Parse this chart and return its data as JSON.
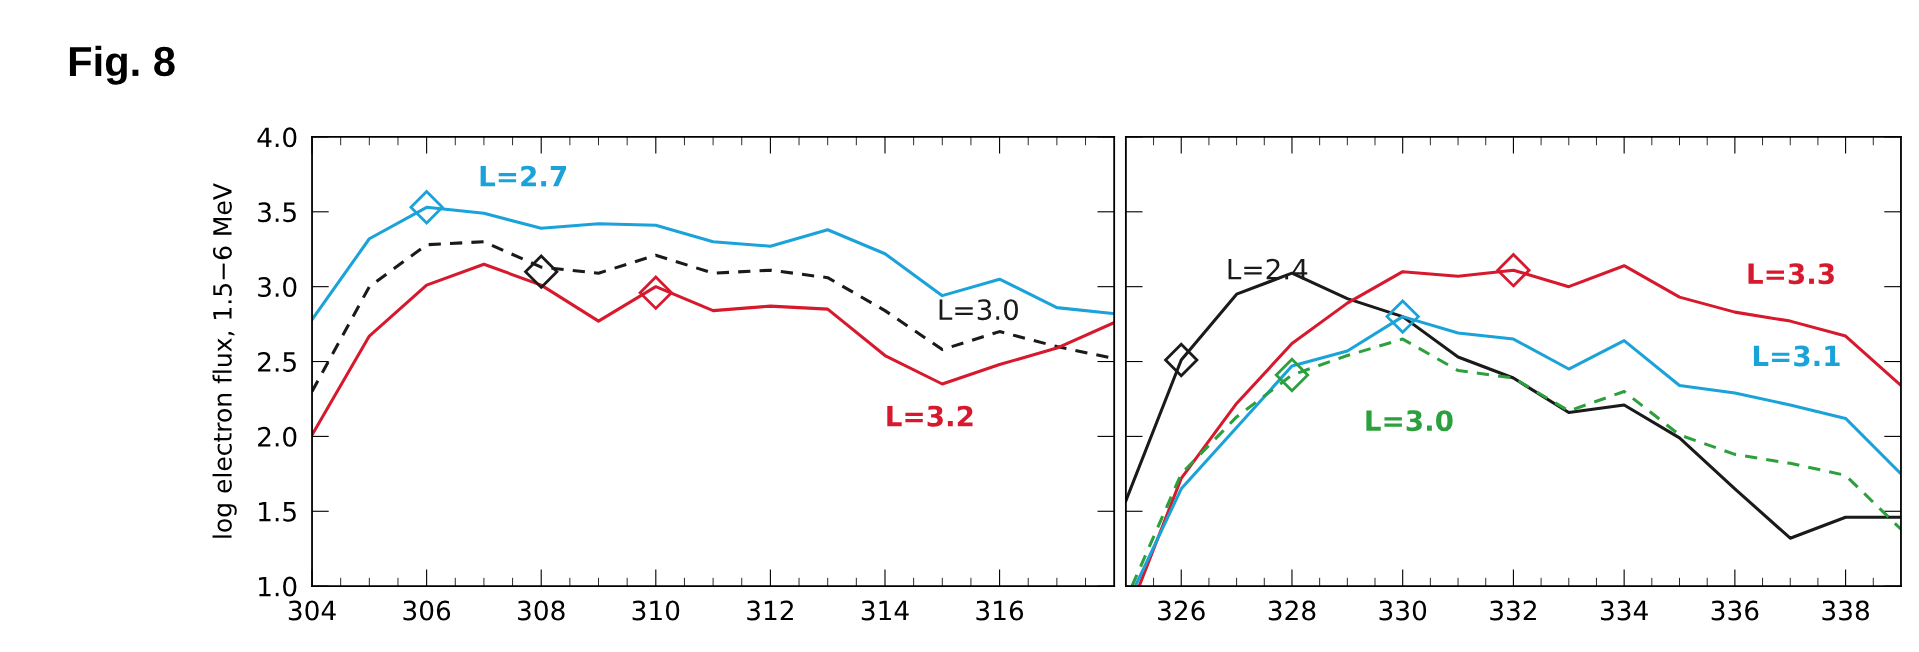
{
  "chart_data": [
    {
      "type": "line",
      "title": "Fig. 8",
      "ylabel": "log electron flux, 1.5−6 MeV",
      "xlim": [
        304,
        318
      ],
      "xticks": [
        304,
        {
          "value": 304.5,
          "label": null
        },
        {
          "value": 305,
          "label": null
        },
        {
          "value": 305.5,
          "label": null
        },
        306,
        {
          "value": 306.5,
          "label": null
        },
        {
          "value": 307,
          "label": null
        },
        {
          "value": 307.5,
          "label": null
        },
        308,
        {
          "value": 308.5,
          "label": null
        },
        {
          "value": 309,
          "label": null
        },
        {
          "value": 309.5,
          "label": null
        },
        310,
        {
          "value": 310.5,
          "label": null
        },
        {
          "value": 311,
          "label": null
        },
        {
          "value": 311.5,
          "label": null
        },
        312,
        {
          "value": 312.5,
          "label": null
        },
        {
          "value": 313,
          "label": null
        },
        {
          "value": 313.5,
          "label": null
        },
        314,
        {
          "value": 314.5,
          "label": null
        },
        {
          "value": 315,
          "label": null
        },
        {
          "value": 315.5,
          "label": null
        },
        316,
        {
          "value": 316.5,
          "label": null
        },
        {
          "value": 317,
          "label": null
        },
        {
          "value": 317.5,
          "label": null
        }
      ],
      "ylim": [
        1.0,
        4.0
      ],
      "yticks": [
        {
          "value": 1.0,
          "label": "1.0"
        },
        {
          "value": 1.5,
          "label": "1.5"
        },
        {
          "value": 2.0,
          "label": "2.0"
        },
        {
          "value": 2.5,
          "label": "2.5"
        },
        {
          "value": 3.0,
          "label": "3.0"
        },
        {
          "value": 3.5,
          "label": "3.5"
        },
        {
          "value": 4.0,
          "label": "4.0"
        }
      ],
      "grid": false,
      "legend": false,
      "x": [
        304,
        305,
        306,
        307,
        308,
        309,
        310,
        311,
        312,
        313,
        314,
        315,
        316,
        317,
        318
      ],
      "series": [
        {
          "name": "L=2.7",
          "color": "#1ba3d9",
          "line_style": "solid",
          "values": [
            2.78,
            3.32,
            3.53,
            3.49,
            3.39,
            3.42,
            3.41,
            3.3,
            3.27,
            3.38,
            3.22,
            2.94,
            3.05,
            2.86,
            2.82
          ]
        },
        {
          "name": "L=3.0",
          "color": "#1a1a1a",
          "line_style": "dashed",
          "values": [
            2.3,
            3.0,
            3.28,
            3.3,
            3.13,
            3.09,
            3.21,
            3.09,
            3.11,
            3.06,
            2.84,
            2.58,
            2.7,
            2.6,
            2.52
          ]
        },
        {
          "name": "L=3.2",
          "color": "#d7192e",
          "line_style": "solid",
          "values": [
            2.01,
            2.67,
            3.01,
            3.15,
            3.01,
            2.77,
            3.0,
            2.84,
            2.87,
            2.85,
            2.54,
            2.35,
            2.48,
            2.59,
            2.76
          ]
        },
        {
          "type": "scatter",
          "marker": "diamond",
          "color": "#1ba3d9",
          "x": [
            306
          ],
          "values": [
            3.53
          ]
        },
        {
          "type": "scatter",
          "marker": "diamond",
          "color": "#1a1a1a",
          "x": [
            308
          ],
          "values": [
            3.1
          ]
        },
        {
          "type": "scatter",
          "marker": "diamond",
          "color": "#d7192e",
          "x": [
            310
          ],
          "values": [
            2.96
          ]
        }
      ]
    },
    {
      "type": "line",
      "xlim": [
        325,
        339
      ],
      "xticks": [
        {
          "value": 325.5,
          "label": null
        },
        326,
        {
          "value": 326.5,
          "label": null
        },
        {
          "value": 327,
          "label": null
        },
        {
          "value": 327.5,
          "label": null
        },
        328,
        {
          "value": 328.5,
          "label": null
        },
        {
          "value": 329,
          "label": null
        },
        {
          "value": 329.5,
          "label": null
        },
        330,
        {
          "value": 330.5,
          "label": null
        },
        {
          "value": 331,
          "label": null
        },
        {
          "value": 331.5,
          "label": null
        },
        332,
        {
          "value": 332.5,
          "label": null
        },
        {
          "value": 333,
          "label": null
        },
        {
          "value": 333.5,
          "label": null
        },
        334,
        {
          "value": 334.5,
          "label": null
        },
        {
          "value": 335,
          "label": null
        },
        {
          "value": 335.5,
          "label": null
        },
        336,
        {
          "value": 336.5,
          "label": null
        },
        {
          "value": 337,
          "label": null
        },
        {
          "value": 337.5,
          "label": null
        },
        338,
        {
          "value": 338.5,
          "label": null
        }
      ],
      "ylim": [
        1.0,
        4.0
      ],
      "yticks": [
        {
          "value": 1.0,
          "label": null
        },
        {
          "value": 1.5,
          "label": null
        },
        {
          "value": 2.0,
          "label": null
        },
        {
          "value": 2.5,
          "label": null
        },
        {
          "value": 3.0,
          "label": null
        },
        {
          "value": 3.5,
          "label": null
        },
        {
          "value": 4.0,
          "label": null
        }
      ],
      "tick_labels": "x",
      "grid": false,
      "legend": false,
      "series": [
        {
          "name": "L=2.4",
          "color": "#1a1a1a",
          "line_style": "solid",
          "x": [
            325,
            326,
            327,
            328,
            329,
            330,
            331,
            332,
            333,
            334,
            335,
            336,
            337,
            338,
            339
          ],
          "values": [
            1.57,
            2.51,
            2.95,
            3.09,
            2.92,
            2.8,
            2.53,
            2.39,
            2.16,
            2.21,
            1.99,
            1.65,
            1.32,
            1.46,
            1.46
          ]
        },
        {
          "name": "L=3.3",
          "color": "#d7192e",
          "line_style": "solid",
          "x": [
            325.24,
            326,
            327,
            328,
            329,
            330,
            331,
            332,
            333,
            334,
            335,
            336,
            337,
            338,
            339
          ],
          "values": [
            1.0,
            1.72,
            2.22,
            2.62,
            2.89,
            3.1,
            3.07,
            3.11,
            3.0,
            3.14,
            2.93,
            2.83,
            2.77,
            2.67,
            2.34
          ]
        },
        {
          "name": "L=3.1",
          "color": "#1ba3d9",
          "line_style": "solid",
          "x": [
            325.17,
            326,
            327,
            328,
            329,
            330,
            331,
            332,
            333,
            334,
            335,
            336,
            337,
            338,
            339
          ],
          "values": [
            1.0,
            1.65,
            2.06,
            2.47,
            2.57,
            2.8,
            2.69,
            2.65,
            2.45,
            2.64,
            2.34,
            2.29,
            2.21,
            2.12,
            1.75
          ]
        },
        {
          "name": "L=3.0",
          "color": "#2ca03c",
          "line_style": "dashed",
          "x": [
            325.11,
            326,
            327,
            328,
            329,
            330,
            331,
            332,
            333,
            334,
            335,
            336,
            337,
            338,
            339
          ],
          "values": [
            1.0,
            1.75,
            2.13,
            2.41,
            2.54,
            2.65,
            2.44,
            2.39,
            2.17,
            2.3,
            2.01,
            1.88,
            1.82,
            1.74,
            1.38
          ]
        },
        {
          "type": "scatter",
          "marker": "diamond",
          "color": "#1a1a1a",
          "x": [
            326
          ],
          "values": [
            2.51
          ]
        },
        {
          "type": "scatter",
          "marker": "diamond",
          "color": "#d7192e",
          "x": [
            332
          ],
          "values": [
            3.11
          ]
        },
        {
          "type": "scatter",
          "marker": "diamond",
          "color": "#1ba3d9",
          "x": [
            330
          ],
          "values": [
            2.8
          ]
        },
        {
          "type": "scatter",
          "marker": "diamond",
          "color": "#2ca03c",
          "x": [
            328
          ],
          "values": [
            2.41
          ]
        }
      ]
    }
  ]
}
